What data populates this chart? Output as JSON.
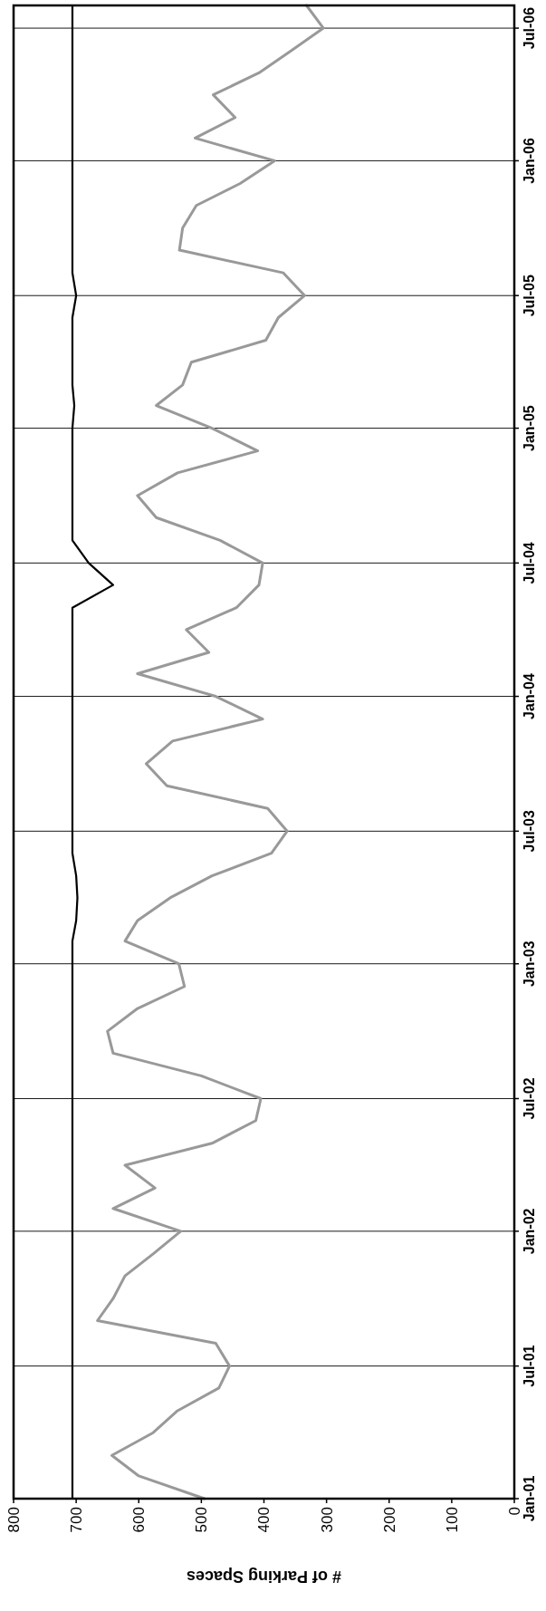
{
  "chart_data": {
    "type": "line",
    "orientation": "horizontal",
    "xlabel": "# of Parking Spaces",
    "x": [
      "2001-01",
      "2001-02",
      "2001-03",
      "2001-04",
      "2001-05",
      "2001-06",
      "2001-07",
      "2001-08",
      "2001-09",
      "2001-10",
      "2001-11",
      "2001-12",
      "2002-01",
      "2002-02",
      "2002-03",
      "2002-04",
      "2002-05",
      "2002-06",
      "2002-07",
      "2002-08",
      "2002-09",
      "2002-10",
      "2002-11",
      "2002-12",
      "2003-01",
      "2003-02",
      "2003-03",
      "2003-04",
      "2003-05",
      "2003-06",
      "2003-07",
      "2003-08",
      "2003-09",
      "2003-10",
      "2003-11",
      "2003-12",
      "2004-01",
      "2004-02",
      "2004-03",
      "2004-04",
      "2004-05",
      "2004-06",
      "2004-07",
      "2004-08",
      "2004-09",
      "2004-10",
      "2004-11",
      "2004-12",
      "2005-01",
      "2005-02",
      "2005-03",
      "2005-04",
      "2005-05",
      "2005-06",
      "2005-07",
      "2005-08",
      "2005-09",
      "2005-10",
      "2005-11",
      "2005-12",
      "2006-01",
      "2006-02",
      "2006-03",
      "2006-04",
      "2006-05",
      "2006-06",
      "2006-07",
      "2006-08"
    ],
    "series": [
      {
        "color": "#000000",
        "values": [
          706,
          706,
          706,
          706,
          706,
          706,
          706,
          706,
          706,
          706,
          706,
          706,
          706,
          706,
          706,
          706,
          706,
          706,
          706,
          706,
          706,
          706,
          706,
          706,
          706,
          706,
          700,
          698,
          700,
          706,
          706,
          706,
          706,
          706,
          706,
          706,
          706,
          706,
          706,
          706,
          706,
          641,
          680,
          706,
          706,
          706,
          706,
          706,
          706,
          703,
          706,
          706,
          706,
          706,
          700,
          706,
          706,
          706,
          706,
          706,
          706,
          706,
          706,
          706,
          706,
          706,
          706,
          706
        ]
      },
      {
        "color": "#999999",
        "values": [
          495,
          600,
          643,
          577,
          538,
          472,
          455,
          477,
          666,
          641,
          622,
          577,
          533,
          641,
          574,
          622,
          483,
          413,
          405,
          500,
          641,
          650,
          602,
          527,
          536,
          622,
          602,
          550,
          483,
          388,
          363,
          394,
          555,
          588,
          546,
          402,
          477,
          602,
          488,
          524,
          444,
          408,
          402,
          470,
          572,
          602,
          538,
          410,
          483,
          572,
          530,
          516,
          397,
          377,
          335,
          369,
          535,
          530,
          508,
          438,
          383,
          510,
          446,
          481,
          408,
          355,
          305,
          332
        ]
      }
    ],
    "ylim": [
      "2001-01",
      "2006-08"
    ],
    "yticks": [
      {
        "value": "2001-01",
        "label": "Jan-01"
      },
      {
        "value": "2001-07",
        "label": "Jul-01"
      },
      {
        "value": "2002-01",
        "label": "Jan-02"
      },
      {
        "value": "2002-07",
        "label": "Jul-02"
      },
      {
        "value": "2003-01",
        "label": "Jan-03"
      },
      {
        "value": "2003-07",
        "label": "Jul-03"
      },
      {
        "value": "2004-01",
        "label": "Jan-04"
      },
      {
        "value": "2004-07",
        "label": "Jul-04"
      },
      {
        "value": "2005-01",
        "label": "Jan-05"
      },
      {
        "value": "2005-07",
        "label": "Jul-05"
      },
      {
        "value": "2006-01",
        "label": "Jan-06"
      },
      {
        "value": "2006-07",
        "label": "Jul-06"
      }
    ],
    "xlim": [
      800,
      0
    ],
    "xticks": [
      800,
      700,
      600,
      500,
      400,
      300,
      200,
      100,
      0
    ],
    "grid": "y",
    "marker": "none",
    "line_style": "solid"
  }
}
